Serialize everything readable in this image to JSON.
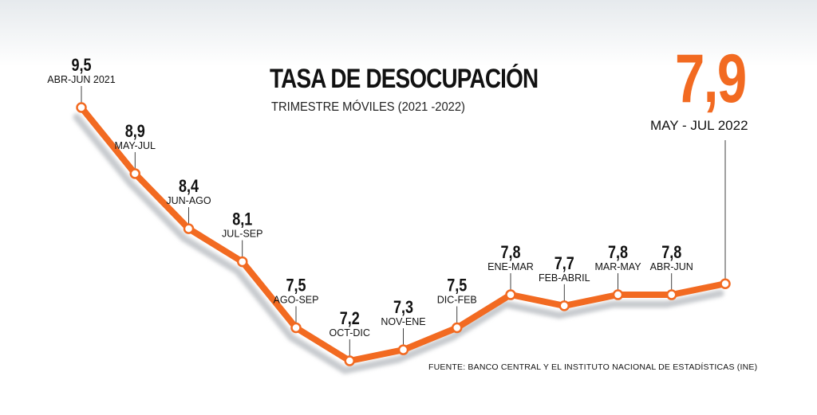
{
  "chart_data": {
    "type": "line",
    "title": "TASA DE DESOCUPACIÓN",
    "subtitle": "TRIMESTRE MÓVILES (2021 -2022)",
    "categories": [
      "ABR-JUN 2021",
      "MAY-JUL",
      "JUN-AGO",
      "JUL-SEP",
      "AGO-SEP",
      "OCT-DIC",
      "NOV-ENE",
      "DIC-FEB",
      "ENE-MAR",
      "FEB-ABRIL",
      "MAR-MAY",
      "ABR-JUN",
      "MAY - JUL 2022"
    ],
    "value_labels": [
      "9,5",
      "8,9",
      "8,4",
      "8,1",
      "7,5",
      "7,2",
      "7,3",
      "7,5",
      "7,8",
      "7,7",
      "7,8",
      "7,8",
      "7,9"
    ],
    "series": [
      {
        "values": [
          9.5,
          8.9,
          8.4,
          8.1,
          7.5,
          7.2,
          7.3,
          7.5,
          7.8,
          7.7,
          7.8,
          7.8,
          7.9
        ]
      }
    ],
    "ylim": [
      7.2,
      9.5
    ],
    "grid": false,
    "legend": "none",
    "highlight": {
      "value_label": "7,9",
      "period_label": "MAY - JUL 2022"
    },
    "source": "FUENTE: BANCO CENTRAL Y EL INSTITUTO NACIONAL DE ESTADÍSTICAS (INE)"
  },
  "colors": {
    "line": "#f26a21",
    "shadow": "#c8cbcf",
    "text": "#111111",
    "marker_fill": "#ffffff",
    "background_top": "#e6eaed",
    "background_bottom": "#ffffff"
  }
}
